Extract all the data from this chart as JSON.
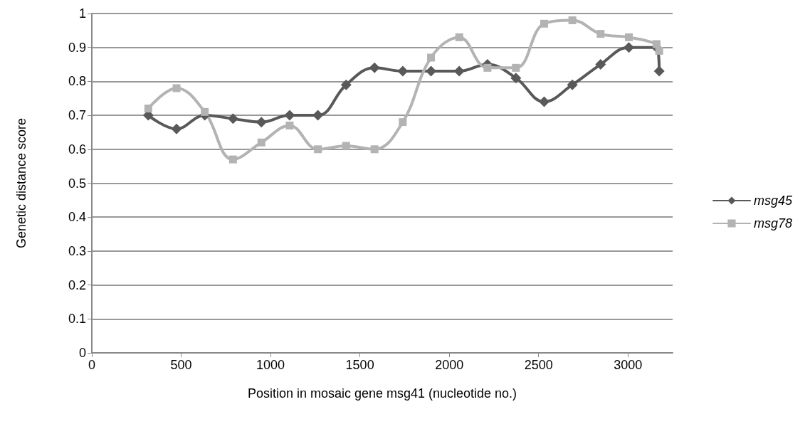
{
  "chart_data": {
    "type": "line",
    "xlabel": "Position in mosaic gene msg41 (nucleotide no.)",
    "ylabel": "Genetic distance score",
    "x": [
      316,
      474,
      632,
      790,
      949,
      1107,
      1265,
      1423,
      1582,
      1740,
      1898,
      2056,
      2214,
      2373,
      2531,
      2689,
      2847,
      3005,
      3160,
      3175
    ],
    "series": [
      {
        "name": "msg45",
        "color": "#595959",
        "marker": "diamond",
        "values": [
          0.7,
          0.66,
          0.7,
          0.69,
          0.68,
          0.7,
          0.7,
          0.79,
          0.84,
          0.83,
          0.83,
          0.83,
          0.85,
          0.81,
          0.74,
          0.79,
          0.85,
          0.9,
          0.9,
          0.83
        ]
      },
      {
        "name": "msg78",
        "color": "#b3b3b3",
        "marker": "square",
        "values": [
          0.72,
          0.78,
          0.71,
          0.57,
          0.62,
          0.67,
          0.6,
          0.61,
          0.6,
          0.68,
          0.87,
          0.93,
          0.84,
          0.84,
          0.97,
          0.98,
          0.94,
          0.93,
          0.91,
          0.89
        ]
      }
    ],
    "xlim": [
      0,
      3250
    ],
    "xticks": [
      0,
      500,
      1000,
      1500,
      2000,
      2500,
      3000
    ],
    "ylim": [
      0,
      1
    ],
    "yticks": [
      0,
      0.1,
      0.2,
      0.3,
      0.4,
      0.5,
      0.6,
      0.7,
      0.8,
      0.9,
      1
    ],
    "grid": "y",
    "legend": "right"
  }
}
